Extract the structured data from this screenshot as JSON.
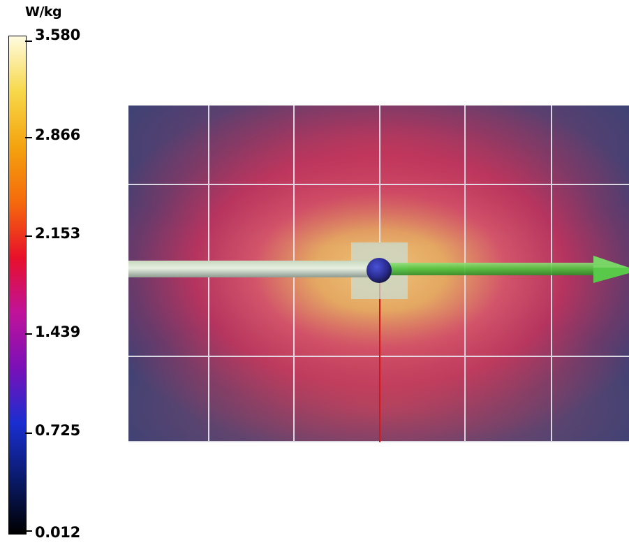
{
  "legend": {
    "unit": "W/kg",
    "ticks": [
      {
        "label": "3.580",
        "value": 3.58
      },
      {
        "label": "2.866",
        "value": 2.866
      },
      {
        "label": "2.153",
        "value": 2.153
      },
      {
        "label": "1.439",
        "value": 1.439
      },
      {
        "label": "0.725",
        "value": 0.725
      },
      {
        "label": "0.012",
        "value": 0.012
      }
    ],
    "min": 0.012,
    "max": 3.58,
    "colormap": [
      "#000000",
      "#0a1a6b",
      "#1a2ed0",
      "#7a10b8",
      "#c0129a",
      "#e8102a",
      "#f56a0c",
      "#f4a30e",
      "#f7d84a",
      "#fffbe0"
    ]
  },
  "scene": {
    "field_colors": {
      "background": "#3a3f70",
      "hot": "#e8b96a",
      "mid": "#c0345e"
    },
    "grid_color": "#e8e8f0",
    "probe_color": "#2c2fa0",
    "axis_color": "#d01818",
    "arrow_color": "#59c94a"
  }
}
